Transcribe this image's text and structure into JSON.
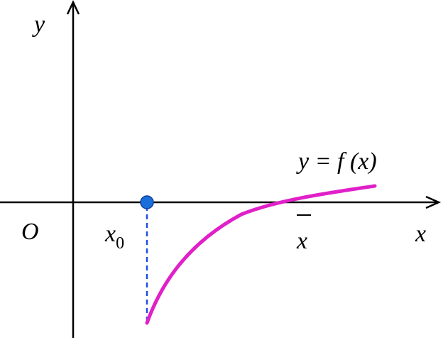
{
  "axes": {
    "y_label": "y",
    "x_label": "x",
    "origin": "O"
  },
  "points": {
    "x0": {
      "base": "x",
      "sub": "0"
    },
    "xbar": "x"
  },
  "curve": {
    "label": "y = f (x)"
  }
}
